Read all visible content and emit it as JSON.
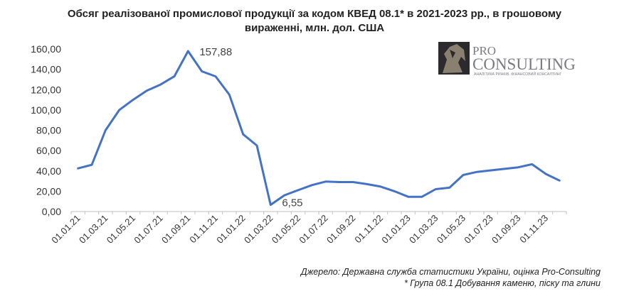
{
  "title": {
    "line1": "Обсяг реалізованої промислової продукції за кодом КВЕД 08.1* в 2021-2023 рр., в грошовому",
    "line2": "вираженні, млн. дол. США"
  },
  "logo": {
    "top": "PRO",
    "main": "CONSULTING",
    "tagline": "АНАЛІТИКА РИНКІВ. ФІНАНСОВИЙ КОНСАЛТИНГ",
    "color": "#7a7a86",
    "icon": "horse-head-logo-icon"
  },
  "footer": {
    "source": "Джерело: Державна служба статистики України, оцінка Pro-Consulting",
    "note": "* Група 08.1 Добування каменю, піску та глини"
  },
  "chart_data": {
    "type": "line",
    "color": "#4472c4",
    "ylim": [
      0,
      160
    ],
    "yticks": [
      "0,00",
      "20,00",
      "40,00",
      "60,00",
      "80,00",
      "100,00",
      "120,00",
      "140,00",
      "160,00"
    ],
    "xtick_labels": [
      "01.01.21",
      "01.03.21",
      "01.05.21",
      "01.07.21",
      "01.09.21",
      "01.11.21",
      "01.01.22",
      "01.03.22",
      "01.05.22",
      "01.07.22",
      "01.09.22",
      "01.11.22",
      "01.01.23",
      "01.03.23",
      "01.05.23",
      "01.07.23",
      "01.09.23",
      "01.11.23"
    ],
    "x": [
      "01.01.21",
      "01.02.21",
      "01.03.21",
      "01.04.21",
      "01.05.21",
      "01.06.21",
      "01.07.21",
      "01.08.21",
      "01.09.21",
      "01.10.21",
      "01.11.21",
      "01.12.21",
      "01.01.22",
      "01.02.22",
      "01.03.22",
      "01.04.22",
      "01.05.22",
      "01.06.22",
      "01.07.22",
      "01.08.22",
      "01.09.22",
      "01.10.22",
      "01.11.22",
      "01.12.22",
      "01.01.23",
      "01.02.23",
      "01.03.23",
      "01.04.23",
      "01.05.23",
      "01.06.23",
      "01.07.23",
      "01.08.23",
      "01.09.23",
      "01.10.23",
      "01.11.23",
      "01.12.23"
    ],
    "values": [
      42.5,
      46,
      80,
      100,
      110,
      119,
      125,
      133,
      157.88,
      138,
      133,
      115,
      76,
      65,
      6.55,
      16,
      21,
      26,
      29.5,
      29,
      29,
      27,
      24.5,
      20,
      14.5,
      14.5,
      22,
      23.5,
      36,
      39,
      40.5,
      42,
      43.5,
      46.5,
      37,
      30.5
    ],
    "annotations": [
      {
        "index": 8,
        "text": "157,88"
      },
      {
        "index": 14,
        "text": "6,55"
      }
    ],
    "grid": false,
    "legend": "none"
  }
}
